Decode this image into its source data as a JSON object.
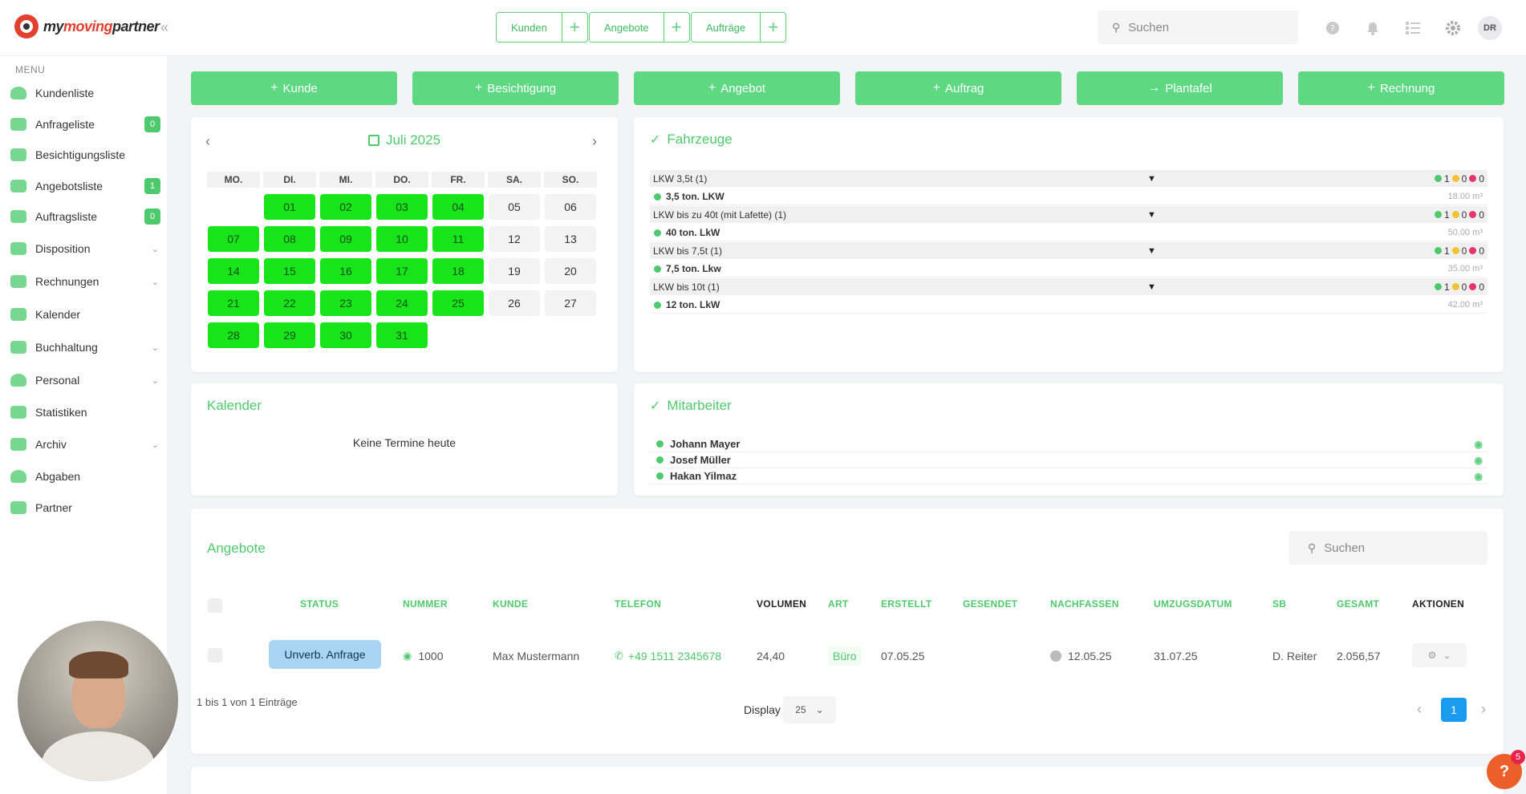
{
  "brand": {
    "name_a": "my",
    "name_b": "moving",
    "name_c": "partner"
  },
  "quick": [
    {
      "label": "Kunden"
    },
    {
      "label": "Angebote"
    },
    {
      "label": "Aufträge"
    }
  ],
  "top_search": {
    "placeholder": "Suchen"
  },
  "user": {
    "initials": "DR"
  },
  "sidebar": {
    "menu_label": "MENU",
    "items": [
      {
        "label": "Kundenliste",
        "badge": ""
      },
      {
        "label": "Anfrageliste",
        "badge": "0"
      },
      {
        "label": "Besichtigungsliste",
        "badge": ""
      },
      {
        "label": "Angebotsliste",
        "badge": "1"
      },
      {
        "label": "Auftragsliste",
        "badge": "0"
      },
      {
        "label": "Disposition",
        "badge": ""
      },
      {
        "label": "Rechnungen",
        "badge": ""
      },
      {
        "label": "Kalender",
        "badge": ""
      },
      {
        "label": "Buchhaltung",
        "badge": ""
      },
      {
        "label": "Personal",
        "badge": ""
      },
      {
        "label": "Statistiken",
        "badge": ""
      },
      {
        "label": "Archiv",
        "badge": ""
      },
      {
        "label": "Abgaben",
        "badge": ""
      },
      {
        "label": "Partner",
        "badge": ""
      }
    ]
  },
  "actions": [
    {
      "label": "Kunde",
      "icon": "+"
    },
    {
      "label": "Besichtigung",
      "icon": "+"
    },
    {
      "label": "Angebot",
      "icon": "+"
    },
    {
      "label": "Auftrag",
      "icon": "+"
    },
    {
      "label": "Plantafel",
      "icon": "→"
    },
    {
      "label": "Rechnung",
      "icon": "+"
    }
  ],
  "calendar": {
    "month": "Juli 2025",
    "dow": [
      "MO.",
      "DI.",
      "MI.",
      "DO.",
      "FR.",
      "SA.",
      "SO."
    ],
    "days": [
      "01",
      "02",
      "03",
      "04",
      "05",
      "06",
      "07",
      "08",
      "09",
      "10",
      "11",
      "12",
      "13",
      "14",
      "15",
      "16",
      "17",
      "18",
      "19",
      "20",
      "21",
      "22",
      "23",
      "24",
      "25",
      "26",
      "27",
      "28",
      "29",
      "30",
      "31"
    ],
    "busy_days": [
      "01",
      "02",
      "03",
      "04",
      "07",
      "08",
      "09",
      "10",
      "11",
      "14",
      "15",
      "16",
      "17",
      "18",
      "21",
      "22",
      "23",
      "24",
      "25",
      "28",
      "29",
      "30",
      "31"
    ],
    "busy_color": "#17e51a"
  },
  "vehicles": {
    "title": "Fahrzeuge",
    "groups": [
      {
        "name": "LKW 3,5t (1)",
        "g": "1",
        "y": "0",
        "r": "0",
        "item": "3,5 ton. LKW",
        "volume": "18.00 m³"
      },
      {
        "name": "LKW bis zu 40t (mit Lafette) (1)",
        "g": "1",
        "y": "0",
        "r": "0",
        "item": "40 ton. LkW",
        "volume": "50.00 m³"
      },
      {
        "name": "LKW bis 7,5t (1)",
        "g": "1",
        "y": "0",
        "r": "0",
        "item": "7,5 ton. Lkw",
        "volume": "35.00 m³"
      },
      {
        "name": "LKW bis 10t (1)",
        "g": "1",
        "y": "0",
        "r": "0",
        "item": "12 ton. LkW",
        "volume": "42.00 m³"
      }
    ]
  },
  "kalender": {
    "title": "Kalender",
    "empty": "Keine Termine heute"
  },
  "employees": {
    "title": "Mitarbeiter",
    "list": [
      "Johann Mayer",
      "Josef Müller",
      "Hakan Yilmaz"
    ]
  },
  "offers": {
    "title": "Angebote",
    "search_placeholder": "Suchen",
    "columns": [
      "STATUS",
      "NUMMER",
      "KUNDE",
      "TELEFON",
      "VOLUMEN",
      "ART",
      "ERSTELLT",
      "GESENDET",
      "NACHFASSEN",
      "UMZUGSDATUM",
      "SB",
      "GESAMT",
      "AKTIONEN"
    ],
    "rows": [
      {
        "status": "Unverb. Anfrage",
        "number": "1000",
        "customer": "Max Mustermann",
        "phone": "+49 1511 2345678",
        "volume": "24,40",
        "type": "Büro",
        "created": "07.05.25",
        "sent": "",
        "followup": "12.05.25",
        "move_date": "31.07.25",
        "sb": "D. Reiter",
        "total": "2.056,57"
      }
    ],
    "summary": "1 bis 1 von 1 Einträge",
    "display_label": "Display",
    "display_value": "25",
    "page": "1"
  },
  "help": {
    "label": "?",
    "badge": "5"
  },
  "colors": {
    "accent": "#4fc96d",
    "button": "#5fd883",
    "status_pill": "#a9d5f3",
    "pager": "#1a9bf0"
  }
}
